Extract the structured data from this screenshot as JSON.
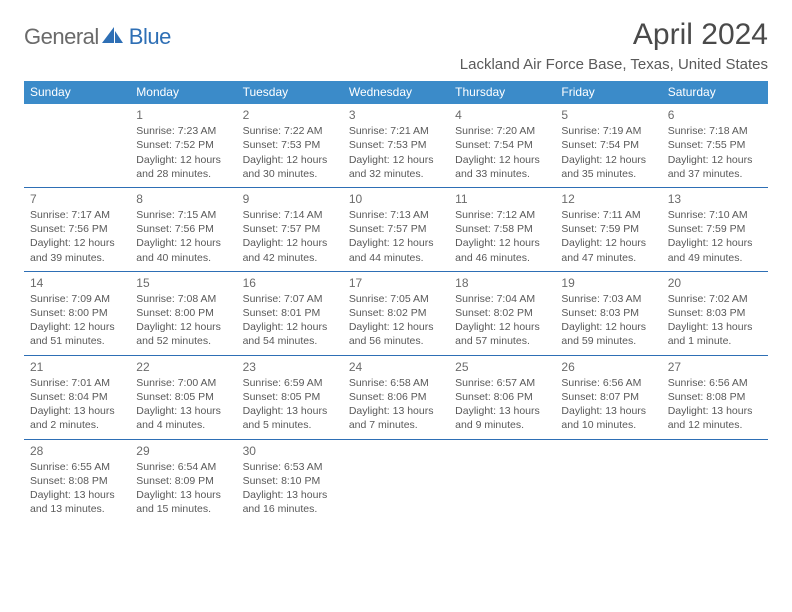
{
  "brand": {
    "general": "General",
    "blue": "Blue"
  },
  "title": "April 2024",
  "location": "Lackland Air Force Base, Texas, United States",
  "colors": {
    "header_bg": "#3b8bc9",
    "border": "#2e6fb5",
    "text": "#595959",
    "title_text": "#4a4a4a"
  },
  "day_headers": [
    "Sunday",
    "Monday",
    "Tuesday",
    "Wednesday",
    "Thursday",
    "Friday",
    "Saturday"
  ],
  "weeks": [
    [
      null,
      {
        "n": "1",
        "sr": "Sunrise: 7:23 AM",
        "ss": "Sunset: 7:52 PM",
        "dl1": "Daylight: 12 hours",
        "dl2": "and 28 minutes."
      },
      {
        "n": "2",
        "sr": "Sunrise: 7:22 AM",
        "ss": "Sunset: 7:53 PM",
        "dl1": "Daylight: 12 hours",
        "dl2": "and 30 minutes."
      },
      {
        "n": "3",
        "sr": "Sunrise: 7:21 AM",
        "ss": "Sunset: 7:53 PM",
        "dl1": "Daylight: 12 hours",
        "dl2": "and 32 minutes."
      },
      {
        "n": "4",
        "sr": "Sunrise: 7:20 AM",
        "ss": "Sunset: 7:54 PM",
        "dl1": "Daylight: 12 hours",
        "dl2": "and 33 minutes."
      },
      {
        "n": "5",
        "sr": "Sunrise: 7:19 AM",
        "ss": "Sunset: 7:54 PM",
        "dl1": "Daylight: 12 hours",
        "dl2": "and 35 minutes."
      },
      {
        "n": "6",
        "sr": "Sunrise: 7:18 AM",
        "ss": "Sunset: 7:55 PM",
        "dl1": "Daylight: 12 hours",
        "dl2": "and 37 minutes."
      }
    ],
    [
      {
        "n": "7",
        "sr": "Sunrise: 7:17 AM",
        "ss": "Sunset: 7:56 PM",
        "dl1": "Daylight: 12 hours",
        "dl2": "and 39 minutes."
      },
      {
        "n": "8",
        "sr": "Sunrise: 7:15 AM",
        "ss": "Sunset: 7:56 PM",
        "dl1": "Daylight: 12 hours",
        "dl2": "and 40 minutes."
      },
      {
        "n": "9",
        "sr": "Sunrise: 7:14 AM",
        "ss": "Sunset: 7:57 PM",
        "dl1": "Daylight: 12 hours",
        "dl2": "and 42 minutes."
      },
      {
        "n": "10",
        "sr": "Sunrise: 7:13 AM",
        "ss": "Sunset: 7:57 PM",
        "dl1": "Daylight: 12 hours",
        "dl2": "and 44 minutes."
      },
      {
        "n": "11",
        "sr": "Sunrise: 7:12 AM",
        "ss": "Sunset: 7:58 PM",
        "dl1": "Daylight: 12 hours",
        "dl2": "and 46 minutes."
      },
      {
        "n": "12",
        "sr": "Sunrise: 7:11 AM",
        "ss": "Sunset: 7:59 PM",
        "dl1": "Daylight: 12 hours",
        "dl2": "and 47 minutes."
      },
      {
        "n": "13",
        "sr": "Sunrise: 7:10 AM",
        "ss": "Sunset: 7:59 PM",
        "dl1": "Daylight: 12 hours",
        "dl2": "and 49 minutes."
      }
    ],
    [
      {
        "n": "14",
        "sr": "Sunrise: 7:09 AM",
        "ss": "Sunset: 8:00 PM",
        "dl1": "Daylight: 12 hours",
        "dl2": "and 51 minutes."
      },
      {
        "n": "15",
        "sr": "Sunrise: 7:08 AM",
        "ss": "Sunset: 8:00 PM",
        "dl1": "Daylight: 12 hours",
        "dl2": "and 52 minutes."
      },
      {
        "n": "16",
        "sr": "Sunrise: 7:07 AM",
        "ss": "Sunset: 8:01 PM",
        "dl1": "Daylight: 12 hours",
        "dl2": "and 54 minutes."
      },
      {
        "n": "17",
        "sr": "Sunrise: 7:05 AM",
        "ss": "Sunset: 8:02 PM",
        "dl1": "Daylight: 12 hours",
        "dl2": "and 56 minutes."
      },
      {
        "n": "18",
        "sr": "Sunrise: 7:04 AM",
        "ss": "Sunset: 8:02 PM",
        "dl1": "Daylight: 12 hours",
        "dl2": "and 57 minutes."
      },
      {
        "n": "19",
        "sr": "Sunrise: 7:03 AM",
        "ss": "Sunset: 8:03 PM",
        "dl1": "Daylight: 12 hours",
        "dl2": "and 59 minutes."
      },
      {
        "n": "20",
        "sr": "Sunrise: 7:02 AM",
        "ss": "Sunset: 8:03 PM",
        "dl1": "Daylight: 13 hours",
        "dl2": "and 1 minute."
      }
    ],
    [
      {
        "n": "21",
        "sr": "Sunrise: 7:01 AM",
        "ss": "Sunset: 8:04 PM",
        "dl1": "Daylight: 13 hours",
        "dl2": "and 2 minutes."
      },
      {
        "n": "22",
        "sr": "Sunrise: 7:00 AM",
        "ss": "Sunset: 8:05 PM",
        "dl1": "Daylight: 13 hours",
        "dl2": "and 4 minutes."
      },
      {
        "n": "23",
        "sr": "Sunrise: 6:59 AM",
        "ss": "Sunset: 8:05 PM",
        "dl1": "Daylight: 13 hours",
        "dl2": "and 5 minutes."
      },
      {
        "n": "24",
        "sr": "Sunrise: 6:58 AM",
        "ss": "Sunset: 8:06 PM",
        "dl1": "Daylight: 13 hours",
        "dl2": "and 7 minutes."
      },
      {
        "n": "25",
        "sr": "Sunrise: 6:57 AM",
        "ss": "Sunset: 8:06 PM",
        "dl1": "Daylight: 13 hours",
        "dl2": "and 9 minutes."
      },
      {
        "n": "26",
        "sr": "Sunrise: 6:56 AM",
        "ss": "Sunset: 8:07 PM",
        "dl1": "Daylight: 13 hours",
        "dl2": "and 10 minutes."
      },
      {
        "n": "27",
        "sr": "Sunrise: 6:56 AM",
        "ss": "Sunset: 8:08 PM",
        "dl1": "Daylight: 13 hours",
        "dl2": "and 12 minutes."
      }
    ],
    [
      {
        "n": "28",
        "sr": "Sunrise: 6:55 AM",
        "ss": "Sunset: 8:08 PM",
        "dl1": "Daylight: 13 hours",
        "dl2": "and 13 minutes."
      },
      {
        "n": "29",
        "sr": "Sunrise: 6:54 AM",
        "ss": "Sunset: 8:09 PM",
        "dl1": "Daylight: 13 hours",
        "dl2": "and 15 minutes."
      },
      {
        "n": "30",
        "sr": "Sunrise: 6:53 AM",
        "ss": "Sunset: 8:10 PM",
        "dl1": "Daylight: 13 hours",
        "dl2": "and 16 minutes."
      },
      null,
      null,
      null,
      null
    ]
  ]
}
